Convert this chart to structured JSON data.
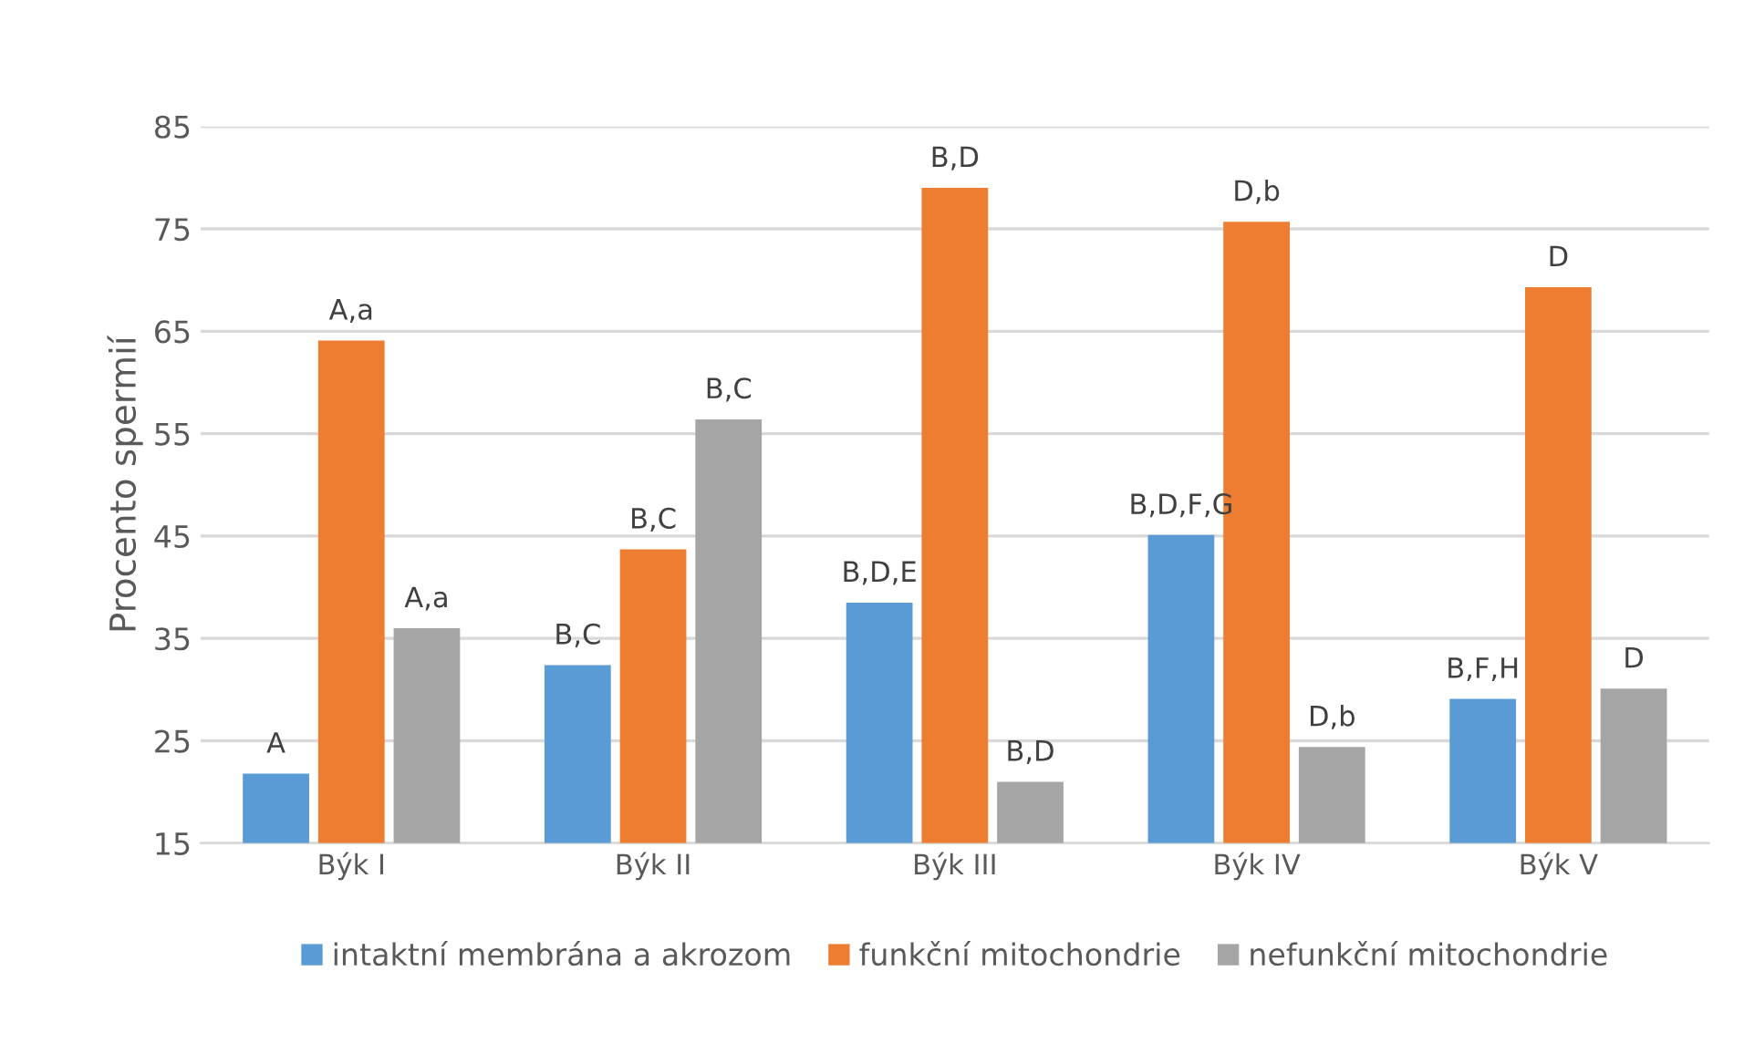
{
  "chart_data": {
    "type": "bar",
    "ylabel": "Procento spermií",
    "categories": [
      "Býk I",
      "Býk II",
      "Býk III",
      "Býk IV",
      "Býk V"
    ],
    "series": [
      {
        "name": "intaktní membrána a akrozom",
        "color": "#5b9bd5",
        "values": [
          21.8,
          32.4,
          38.5,
          45.1,
          29.1
        ],
        "value_labels": [
          "A",
          "B,C",
          "B,D,E",
          "B,D,F,G",
          "B,F,H"
        ]
      },
      {
        "name": "funkční mitochondrie",
        "color": "#ed7d31",
        "values": [
          64.1,
          43.7,
          79.0,
          75.7,
          69.3
        ],
        "value_labels": [
          "A,a",
          "B,C",
          "B,D",
          "D,b",
          "D"
        ]
      },
      {
        "name": "nefunkční mitochondrie",
        "color": "#a5a5a5",
        "values": [
          36.0,
          56.4,
          21.0,
          24.4,
          30.1
        ],
        "value_labels": [
          "A,a",
          "B,C",
          "B,D",
          "D,b",
          "D"
        ]
      }
    ],
    "ylim": [
      15,
      85
    ],
    "yticks": [
      15,
      25,
      35,
      45,
      55,
      65,
      75,
      85
    ],
    "grid": "y",
    "legend": "bottom"
  }
}
